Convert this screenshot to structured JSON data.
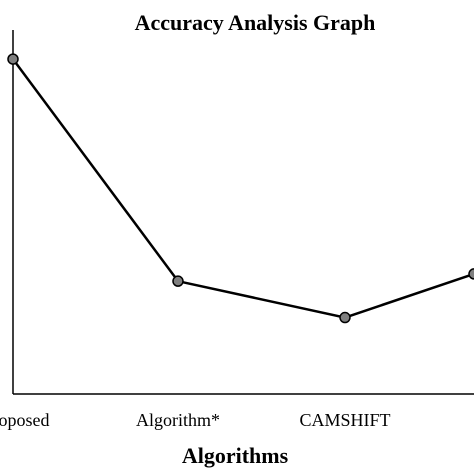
{
  "chart_data": {
    "type": "line",
    "title": "Accuracy Analysis Graph",
    "xlabel": "Algorithms",
    "ylabel": "",
    "categories": [
      "Proposed",
      "Algorithm*",
      "CAMSHIFT",
      ""
    ],
    "visible_tick_labels": [
      "oposed",
      "Algorithm*",
      "CAMSHIFT",
      ""
    ],
    "values": [
      92,
      31,
      21,
      33
    ],
    "ylim": [
      0,
      100
    ],
    "grid": false,
    "colors": {
      "line": "#000000",
      "marker_fill": "#7f7f7f",
      "marker_stroke": "#000000",
      "axis": "#000000"
    }
  }
}
